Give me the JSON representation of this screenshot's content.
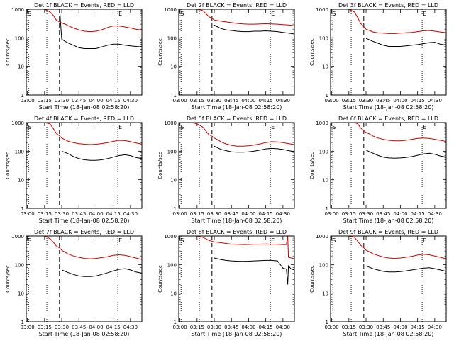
{
  "chart_data": [
    {
      "type": "line",
      "title": "Det 1f BLACK = Events, RED = LLD",
      "xlabel": "Start Time (18-Jan-08 02:58:20)",
      "ylabel": "Counts/sec",
      "markers": [
        "S",
        "E"
      ],
      "series": [
        {
          "name": "Events",
          "color": "#000000",
          "x": [
            3.33,
            3.38,
            3.42,
            3.47,
            3.5,
            3.55,
            3.6,
            3.67,
            3.75,
            3.83,
            3.92,
            4.0,
            4.08,
            4.17,
            4.25,
            4.33,
            4.42,
            4.5,
            4.58,
            4.67,
            4.75
          ],
          "values": [
            1000,
            1000,
            1000,
            1000,
            90,
            75,
            65,
            55,
            45,
            42,
            42,
            42,
            48,
            55,
            60,
            60,
            55,
            52,
            50,
            48,
            45
          ]
        },
        {
          "name": "LLD",
          "color": "#cc0000",
          "x": [
            3.0,
            3.05,
            3.1,
            3.17,
            3.25,
            3.33,
            3.38,
            3.42,
            3.47,
            3.5,
            3.55,
            3.6,
            3.67,
            3.75,
            3.83,
            3.92,
            4.0,
            4.08,
            4.17,
            4.25,
            4.33,
            4.42,
            4.5,
            4.58,
            4.67,
            4.75
          ],
          "values": [
            1000,
            1000,
            1000,
            1000,
            1000,
            800,
            600,
            420,
            360,
            330,
            300,
            260,
            220,
            190,
            170,
            165,
            170,
            190,
            230,
            260,
            260,
            240,
            220,
            200,
            185,
            175
          ]
        }
      ]
    },
    {
      "type": "line",
      "title": "Det 2f BLACK = Events, RED = LLD",
      "xlabel": "Start Time (18-Jan-08 02:58:20)",
      "ylabel": "Counts/sec",
      "markers": [
        "S",
        "E"
      ],
      "series": [
        {
          "name": "Events",
          "color": "#000000",
          "x": [
            3.5,
            3.55,
            3.6,
            3.67,
            3.75,
            3.83,
            3.92,
            4.0,
            4.08,
            4.17,
            4.25,
            4.33,
            4.42,
            4.5,
            4.58,
            4.67,
            4.75
          ],
          "values": [
            280,
            240,
            210,
            190,
            180,
            170,
            165,
            165,
            170,
            170,
            175,
            170,
            165,
            155,
            145,
            135,
            125
          ]
        },
        {
          "name": "LLD",
          "color": "#cc0000",
          "x": [
            3.0,
            3.05,
            3.1,
            3.17,
            3.25,
            3.33,
            3.38,
            3.42,
            3.47,
            3.5,
            3.55,
            3.6,
            3.67,
            3.75,
            3.83,
            3.92,
            4.0,
            4.08,
            4.17,
            4.25,
            4.33,
            4.42,
            4.5,
            4.58,
            4.67,
            4.75
          ],
          "values": [
            1000,
            1000,
            1000,
            1000,
            1000,
            900,
            700,
            550,
            480,
            420,
            400,
            380,
            360,
            340,
            320,
            305,
            300,
            300,
            305,
            310,
            305,
            300,
            290,
            280,
            265,
            255
          ]
        }
      ]
    },
    {
      "type": "line",
      "title": "Det 3f BLACK = Events, RED = LLD",
      "xlabel": "Start Time (18-Jan-08 02:58:20)",
      "ylabel": "Counts/sec",
      "markers": [
        "S",
        "E"
      ],
      "series": [
        {
          "name": "Events",
          "color": "#000000",
          "x": [
            3.5,
            3.55,
            3.6,
            3.67,
            3.75,
            3.83,
            3.92,
            4.0,
            4.08,
            4.17,
            4.25,
            4.33,
            4.42,
            4.5,
            4.58,
            4.67,
            4.75
          ],
          "values": [
            95,
            85,
            75,
            65,
            55,
            50,
            50,
            50,
            52,
            55,
            58,
            62,
            68,
            70,
            60,
            55,
            50
          ]
        },
        {
          "name": "LLD",
          "color": "#cc0000",
          "x": [
            3.0,
            3.05,
            3.1,
            3.17,
            3.25,
            3.33,
            3.38,
            3.42,
            3.47,
            3.5,
            3.55,
            3.6,
            3.67,
            3.75,
            3.83,
            3.92,
            4.0,
            4.08,
            4.17,
            4.25,
            4.33,
            4.42,
            4.5,
            4.58,
            4.67,
            4.75
          ],
          "values": [
            1000,
            1000,
            1000,
            1000,
            1000,
            800,
            500,
            320,
            240,
            200,
            180,
            160,
            150,
            145,
            140,
            140,
            145,
            150,
            155,
            165,
            175,
            180,
            170,
            160,
            150,
            145
          ]
        }
      ]
    },
    {
      "type": "line",
      "title": "Det 4f BLACK = Events, RED = LLD",
      "xlabel": "Start Time (18-Jan-08 02:58:20)",
      "ylabel": "Counts/sec",
      "markers": [
        "S",
        "E"
      ],
      "series": [
        {
          "name": "Events",
          "color": "#000000",
          "x": [
            3.5,
            3.55,
            3.6,
            3.67,
            3.75,
            3.83,
            3.92,
            4.0,
            4.08,
            4.17,
            4.25,
            4.33,
            4.42,
            4.5,
            4.58,
            4.67,
            4.75
          ],
          "values": [
            100,
            90,
            80,
            65,
            55,
            50,
            48,
            48,
            50,
            55,
            62,
            70,
            75,
            70,
            60,
            55,
            50
          ]
        },
        {
          "name": "LLD",
          "color": "#cc0000",
          "x": [
            3.0,
            3.05,
            3.1,
            3.17,
            3.25,
            3.33,
            3.38,
            3.42,
            3.47,
            3.5,
            3.55,
            3.6,
            3.67,
            3.75,
            3.83,
            3.92,
            4.0,
            4.08,
            4.17,
            4.25,
            4.33,
            4.42,
            4.5,
            4.58,
            4.67,
            4.75
          ],
          "values": [
            1000,
            1000,
            1000,
            1000,
            1000,
            900,
            600,
            420,
            340,
            290,
            250,
            220,
            200,
            185,
            175,
            170,
            175,
            185,
            200,
            220,
            240,
            235,
            215,
            195,
            175,
            160
          ]
        }
      ]
    },
    {
      "type": "line",
      "title": "Det 5f BLACK = Events, RED = LLD",
      "xlabel": "Start Time (18-Jan-08 02:58:20)",
      "ylabel": "Counts/sec",
      "markers": [
        "S",
        "E"
      ],
      "series": [
        {
          "name": "Events",
          "color": "#000000",
          "x": [
            3.5,
            3.55,
            3.6,
            3.67,
            3.75,
            3.83,
            3.92,
            4.0,
            4.08,
            4.17,
            4.25,
            4.33,
            4.42,
            4.5,
            4.58,
            4.67,
            4.75
          ],
          "values": [
            150,
            130,
            115,
            105,
            95,
            92,
            92,
            95,
            100,
            110,
            120,
            125,
            122,
            115,
            105,
            95,
            85
          ]
        },
        {
          "name": "LLD",
          "color": "#cc0000",
          "x": [
            3.0,
            3.05,
            3.1,
            3.17,
            3.25,
            3.33,
            3.38,
            3.42,
            3.47,
            3.5,
            3.55,
            3.6,
            3.67,
            3.75,
            3.83,
            3.92,
            4.0,
            4.08,
            4.17,
            4.25,
            4.33,
            4.42,
            4.5,
            4.58,
            4.67,
            4.75
          ],
          "values": [
            1000,
            1000,
            1000,
            1000,
            900,
            700,
            500,
            380,
            330,
            290,
            250,
            210,
            180,
            160,
            150,
            150,
            155,
            165,
            180,
            200,
            215,
            210,
            200,
            185,
            170,
            150
          ]
        }
      ]
    },
    {
      "type": "line",
      "title": "Det 6f BLACK = Events, RED = LLD",
      "xlabel": "Start Time (18-Jan-08 02:58:20)",
      "ylabel": "Counts/sec",
      "markers": [
        "S",
        "E"
      ],
      "series": [
        {
          "name": "Events",
          "color": "#000000",
          "x": [
            3.5,
            3.55,
            3.6,
            3.67,
            3.75,
            3.83,
            3.92,
            4.0,
            4.08,
            4.17,
            4.25,
            4.33,
            4.42,
            4.5,
            4.58,
            4.67,
            4.75
          ],
          "values": [
            110,
            95,
            85,
            72,
            62,
            58,
            57,
            58,
            60,
            65,
            72,
            80,
            85,
            78,
            68,
            62,
            55
          ]
        },
        {
          "name": "LLD",
          "color": "#cc0000",
          "x": [
            3.0,
            3.05,
            3.1,
            3.17,
            3.25,
            3.33,
            3.38,
            3.42,
            3.47,
            3.5,
            3.55,
            3.6,
            3.67,
            3.75,
            3.83,
            3.92,
            4.0,
            4.08,
            4.17,
            4.25,
            4.33,
            4.42,
            4.5,
            4.58,
            4.67,
            4.75
          ],
          "values": [
            1000,
            1000,
            1000,
            1000,
            1000,
            1000,
            900,
            650,
            520,
            450,
            400,
            340,
            290,
            260,
            240,
            230,
            230,
            240,
            260,
            280,
            290,
            280,
            260,
            240,
            220,
            205
          ]
        }
      ]
    },
    {
      "type": "line",
      "title": "Det 7f BLACK = Events, RED = LLD",
      "xlabel": "Start Time (18-Jan-08 02:58:20)",
      "ylabel": "Counts/sec",
      "markers": [
        "S",
        "E"
      ],
      "series": [
        {
          "name": "Events",
          "color": "#000000",
          "x": [
            3.5,
            3.55,
            3.6,
            3.67,
            3.75,
            3.83,
            3.92,
            4.0,
            4.08,
            4.17,
            4.25,
            4.33,
            4.42,
            4.5,
            4.58,
            4.67,
            4.75
          ],
          "values": [
            65,
            58,
            52,
            45,
            40,
            38,
            38,
            40,
            45,
            52,
            60,
            68,
            72,
            65,
            55,
            50,
            45
          ]
        },
        {
          "name": "LLD",
          "color": "#cc0000",
          "x": [
            3.0,
            3.05,
            3.1,
            3.17,
            3.25,
            3.33,
            3.38,
            3.42,
            3.47,
            3.5,
            3.55,
            3.6,
            3.67,
            3.75,
            3.83,
            3.92,
            4.0,
            4.08,
            4.17,
            4.25,
            4.33,
            4.42,
            4.5,
            4.58,
            4.67,
            4.75
          ],
          "values": [
            1000,
            1000,
            1000,
            1000,
            1000,
            800,
            600,
            450,
            380,
            320,
            270,
            230,
            200,
            180,
            165,
            160,
            165,
            175,
            190,
            210,
            220,
            210,
            190,
            170,
            150,
            135
          ]
        }
      ]
    },
    {
      "type": "line",
      "title": "Det 8f BLACK = Events, RED = LLD",
      "xlabel": "Start Time (18-Jan-08 02:58:20)",
      "ylabel": "Counts/sec",
      "markers": [
        "S",
        "E"
      ],
      "series": [
        {
          "name": "Events",
          "color": "#000000",
          "x": [
            3.5,
            3.55,
            3.6,
            3.67,
            3.75,
            3.83,
            3.92,
            4.0,
            4.08,
            4.17,
            4.25,
            4.33,
            4.42,
            4.5,
            4.55,
            4.57,
            4.58,
            4.62,
            4.67,
            4.75
          ],
          "values": [
            170,
            160,
            150,
            140,
            135,
            132,
            130,
            132,
            135,
            138,
            140,
            140,
            135,
            75,
            70,
            20,
            90,
            70,
            65,
            60
          ]
        },
        {
          "name": "LLD",
          "color": "#cc0000",
          "x": [
            3.0,
            3.05,
            3.1,
            3.17,
            3.25,
            3.33,
            3.38,
            3.42,
            3.47,
            3.5,
            3.55,
            3.6,
            3.67,
            3.75,
            3.83,
            3.92,
            4.0,
            4.08,
            4.17,
            4.25,
            4.33,
            4.42,
            4.5,
            4.55,
            4.57,
            4.58,
            4.62,
            4.67,
            4.75
          ],
          "values": [
            1000,
            1000,
            1000,
            1000,
            1000,
            900,
            800,
            700,
            650,
            620,
            600,
            580,
            550,
            520,
            510,
            500,
            505,
            515,
            520,
            525,
            520,
            510,
            500,
            500,
            1000,
            180,
            170,
            160,
            150
          ]
        }
      ]
    },
    {
      "type": "line",
      "title": "Det 9f BLACK = Events, RED = LLD",
      "xlabel": "Start Time (18-Jan-08 02:58:20)",
      "ylabel": "Counts/sec",
      "markers": [
        "S",
        "E"
      ],
      "series": [
        {
          "name": "Events",
          "color": "#000000",
          "x": [
            3.5,
            3.55,
            3.6,
            3.67,
            3.75,
            3.83,
            3.92,
            4.0,
            4.08,
            4.17,
            4.25,
            4.33,
            4.42,
            4.5,
            4.58,
            4.67,
            4.75
          ],
          "values": [
            90,
            80,
            72,
            65,
            58,
            55,
            55,
            57,
            60,
            65,
            70,
            75,
            78,
            72,
            65,
            58,
            52
          ]
        },
        {
          "name": "LLD",
          "color": "#cc0000",
          "x": [
            3.0,
            3.05,
            3.1,
            3.17,
            3.25,
            3.33,
            3.38,
            3.42,
            3.47,
            3.5,
            3.55,
            3.6,
            3.67,
            3.75,
            3.83,
            3.92,
            4.0,
            4.08,
            4.17,
            4.25,
            4.33,
            4.42,
            4.5,
            4.58,
            4.67,
            4.75
          ],
          "values": [
            1000,
            1000,
            1000,
            1000,
            1000,
            900,
            650,
            480,
            380,
            320,
            280,
            240,
            210,
            185,
            170,
            165,
            170,
            180,
            195,
            215,
            230,
            220,
            200,
            180,
            160,
            145
          ]
        }
      ]
    }
  ],
  "axis": {
    "y_scale": "log",
    "ylim": [
      1,
      1000
    ],
    "ytick_labels": [
      "1",
      "10",
      "100",
      "1000"
    ],
    "x_range": [
      "03:00",
      "04:40"
    ],
    "xtick_labels": [
      "03:00",
      "03:15",
      "03:30",
      "03:45",
      "04:00",
      "04:15",
      "04:30"
    ]
  },
  "vertical_markers": {
    "dotted_lines": [
      "03:01",
      "03:17",
      "04:19"
    ],
    "dashed_line": "03:28"
  },
  "colors": {
    "events": "#000000",
    "lld": "#cc0000",
    "background": "#ffffff"
  }
}
